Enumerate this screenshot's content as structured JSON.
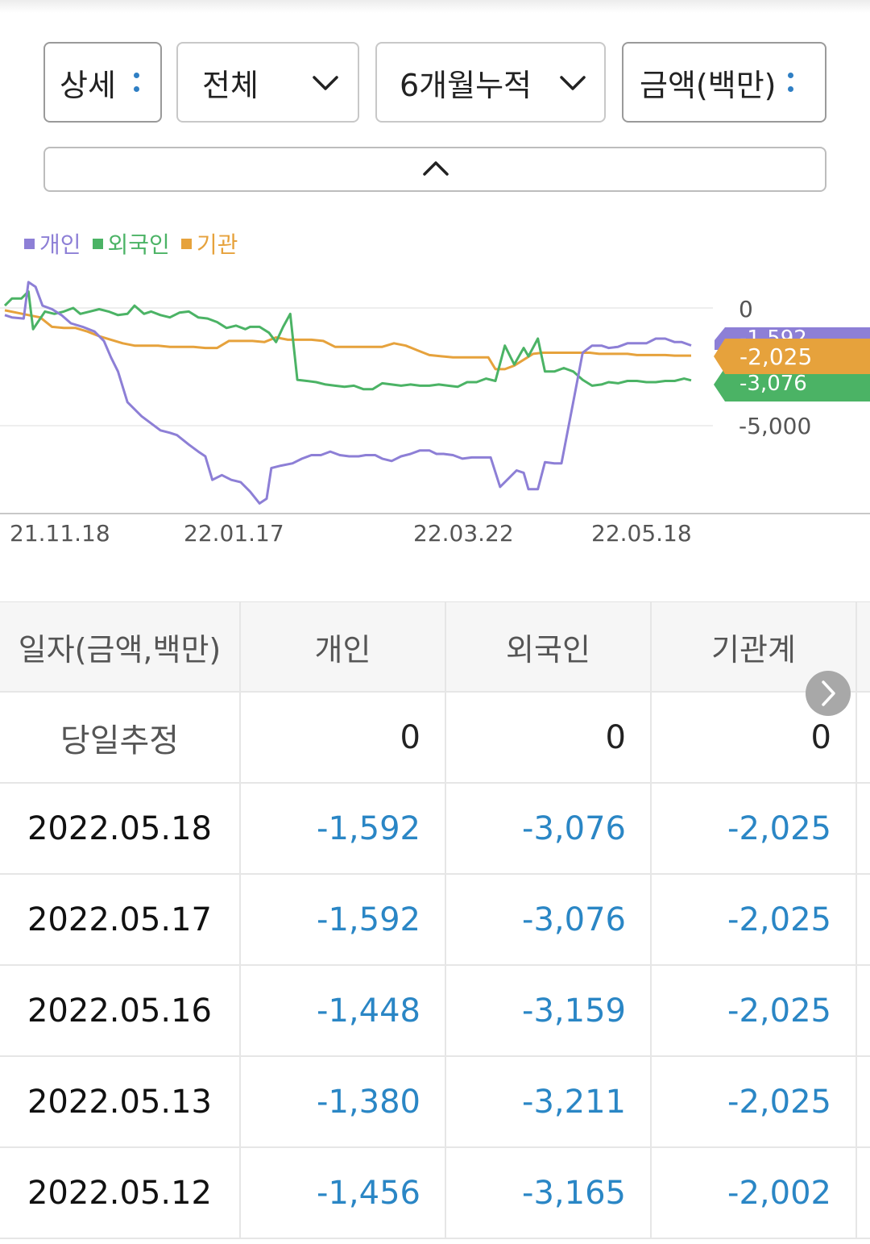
{
  "filters": {
    "view": "상세",
    "scope": "전체",
    "period": "6개월누적",
    "unit": "금액(백만)"
  },
  "chart_data": {
    "type": "line",
    "legend": [
      "개인",
      "외국인",
      "기관"
    ],
    "colors": {
      "개인": "#8d7fd6",
      "외국인": "#4bb365",
      "기관": "#e6a23c"
    },
    "x_ticks": [
      "21.11.18",
      "22.01.17",
      "22.03.22",
      "22.05.18"
    ],
    "y_ticks": [
      "0",
      "-5,000"
    ],
    "ylim": [
      -8500,
      1400
    ],
    "end_labels": {
      "개인": "-1,592",
      "기관": "-2,025",
      "외국인": "-3,076"
    },
    "series": [
      {
        "name": "개인",
        "points": [
          [
            0,
            -300
          ],
          [
            3,
            -400
          ],
          [
            8,
            -450
          ],
          [
            10,
            1100
          ],
          [
            13,
            900
          ],
          [
            16,
            100
          ],
          [
            20,
            -50
          ],
          [
            24,
            -300
          ],
          [
            28,
            -650
          ],
          [
            33,
            -800
          ],
          [
            38,
            -1000
          ],
          [
            42,
            -1400
          ],
          [
            45,
            -2100
          ],
          [
            48,
            -2700
          ],
          [
            52,
            -4000
          ],
          [
            55,
            -4300
          ],
          [
            58,
            -4600
          ],
          [
            62,
            -4900
          ],
          [
            66,
            -5200
          ],
          [
            70,
            -5300
          ],
          [
            73,
            -5400
          ],
          [
            78,
            -5800
          ],
          [
            82,
            -6100
          ],
          [
            85,
            -6300
          ],
          [
            88,
            -7300
          ],
          [
            92,
            -7100
          ],
          [
            96,
            -7300
          ],
          [
            100,
            -7400
          ],
          [
            104,
            -7800
          ],
          [
            108,
            -8300
          ],
          [
            111,
            -8100
          ],
          [
            113,
            -6800
          ],
          [
            117,
            -6700
          ],
          [
            122,
            -6600
          ],
          [
            126,
            -6400
          ],
          [
            130,
            -6250
          ],
          [
            134,
            -6250
          ],
          [
            138,
            -6100
          ],
          [
            142,
            -6250
          ],
          [
            146,
            -6300
          ],
          [
            150,
            -6300
          ],
          [
            153,
            -6250
          ],
          [
            157,
            -6250
          ],
          [
            160,
            -6400
          ],
          [
            164,
            -6500
          ],
          [
            168,
            -6300
          ],
          [
            172,
            -6200
          ],
          [
            176,
            -6050
          ],
          [
            180,
            -6050
          ],
          [
            183,
            -6200
          ],
          [
            186,
            -6200
          ],
          [
            190,
            -6250
          ],
          [
            194,
            -6400
          ],
          [
            198,
            -6350
          ],
          [
            202,
            -6350
          ],
          [
            206,
            -6350
          ],
          [
            210,
            -7600
          ],
          [
            214,
            -7200
          ],
          [
            217,
            -6900
          ],
          [
            220,
            -7000
          ],
          [
            222,
            -7700
          ],
          [
            226,
            -7700
          ],
          [
            229,
            -6550
          ],
          [
            233,
            -6600
          ],
          [
            236,
            -6600
          ],
          [
            241,
            -4000
          ],
          [
            245,
            -1900
          ],
          [
            249,
            -1600
          ],
          [
            253,
            -1600
          ],
          [
            256,
            -1700
          ],
          [
            260,
            -1650
          ],
          [
            264,
            -1500
          ],
          [
            268,
            -1500
          ],
          [
            272,
            -1500
          ],
          [
            276,
            -1300
          ],
          [
            280,
            -1300
          ],
          [
            284,
            -1450
          ],
          [
            287,
            -1450
          ],
          [
            291,
            -1592
          ]
        ]
      },
      {
        "name": "외국인",
        "points": [
          [
            0,
            100
          ],
          [
            3,
            400
          ],
          [
            7,
            400
          ],
          [
            10,
            700
          ],
          [
            12,
            -900
          ],
          [
            14,
            -600
          ],
          [
            17,
            -150
          ],
          [
            21,
            -250
          ],
          [
            25,
            -150
          ],
          [
            29,
            0
          ],
          [
            32,
            -250
          ],
          [
            36,
            -150
          ],
          [
            40,
            -50
          ],
          [
            44,
            -150
          ],
          [
            48,
            -300
          ],
          [
            52,
            -250
          ],
          [
            55,
            100
          ],
          [
            59,
            -250
          ],
          [
            62,
            -150
          ],
          [
            66,
            -300
          ],
          [
            70,
            -400
          ],
          [
            74,
            -200
          ],
          [
            78,
            -150
          ],
          [
            82,
            -400
          ],
          [
            86,
            -450
          ],
          [
            90,
            -600
          ],
          [
            94,
            -850
          ],
          [
            98,
            -750
          ],
          [
            102,
            -900
          ],
          [
            104,
            -800
          ],
          [
            108,
            -800
          ],
          [
            112,
            -1050
          ],
          [
            115,
            -1450
          ],
          [
            118,
            -800
          ],
          [
            121,
            -250
          ],
          [
            124,
            -3050
          ],
          [
            128,
            -3100
          ],
          [
            132,
            -3150
          ],
          [
            136,
            -3250
          ],
          [
            140,
            -3300
          ],
          [
            144,
            -3350
          ],
          [
            148,
            -3300
          ],
          [
            152,
            -3450
          ],
          [
            156,
            -3450
          ],
          [
            160,
            -3200
          ],
          [
            164,
            -3250
          ],
          [
            168,
            -3300
          ],
          [
            172,
            -3250
          ],
          [
            176,
            -3300
          ],
          [
            180,
            -3300
          ],
          [
            184,
            -3250
          ],
          [
            188,
            -3300
          ],
          [
            192,
            -3350
          ],
          [
            196,
            -3150
          ],
          [
            200,
            -3150
          ],
          [
            204,
            -3000
          ],
          [
            208,
            -3100
          ],
          [
            212,
            -1600
          ],
          [
            216,
            -2400
          ],
          [
            220,
            -1700
          ],
          [
            222,
            -2050
          ],
          [
            226,
            -1300
          ],
          [
            229,
            -2700
          ],
          [
            233,
            -2700
          ],
          [
            237,
            -2550
          ],
          [
            241,
            -2700
          ],
          [
            245,
            -3050
          ],
          [
            249,
            -3300
          ],
          [
            253,
            -3250
          ],
          [
            256,
            -3150
          ],
          [
            260,
            -3200
          ],
          [
            264,
            -3100
          ],
          [
            268,
            -3100
          ],
          [
            272,
            -3150
          ],
          [
            276,
            -3150
          ],
          [
            280,
            -3100
          ],
          [
            284,
            -3100
          ],
          [
            288,
            -3000
          ],
          [
            291,
            -3076
          ]
        ]
      },
      {
        "name": "기관",
        "points": [
          [
            0,
            -100
          ],
          [
            5,
            -200
          ],
          [
            10,
            -300
          ],
          [
            15,
            -400
          ],
          [
            20,
            -800
          ],
          [
            25,
            -850
          ],
          [
            30,
            -850
          ],
          [
            35,
            -1000
          ],
          [
            40,
            -1200
          ],
          [
            45,
            -1350
          ],
          [
            50,
            -1500
          ],
          [
            55,
            -1600
          ],
          [
            60,
            -1600
          ],
          [
            65,
            -1600
          ],
          [
            70,
            -1650
          ],
          [
            75,
            -1650
          ],
          [
            80,
            -1650
          ],
          [
            85,
            -1700
          ],
          [
            90,
            -1700
          ],
          [
            95,
            -1400
          ],
          [
            100,
            -1400
          ],
          [
            105,
            -1400
          ],
          [
            110,
            -1450
          ],
          [
            115,
            -1250
          ],
          [
            120,
            -1350
          ],
          [
            125,
            -1350
          ],
          [
            130,
            -1350
          ],
          [
            135,
            -1400
          ],
          [
            140,
            -1650
          ],
          [
            145,
            -1650
          ],
          [
            150,
            -1650
          ],
          [
            155,
            -1650
          ],
          [
            160,
            -1650
          ],
          [
            165,
            -1500
          ],
          [
            170,
            -1600
          ],
          [
            175,
            -1800
          ],
          [
            180,
            -2000
          ],
          [
            185,
            -2050
          ],
          [
            190,
            -2100
          ],
          [
            195,
            -2100
          ],
          [
            200,
            -2100
          ],
          [
            205,
            -2100
          ],
          [
            208,
            -2600
          ],
          [
            212,
            -2600
          ],
          [
            216,
            -2450
          ],
          [
            220,
            -2200
          ],
          [
            224,
            -1950
          ],
          [
            228,
            -1900
          ],
          [
            232,
            -1900
          ],
          [
            236,
            -1900
          ],
          [
            240,
            -1900
          ],
          [
            244,
            -1900
          ],
          [
            248,
            -1900
          ],
          [
            252,
            -1950
          ],
          [
            256,
            -1950
          ],
          [
            260,
            -1950
          ],
          [
            264,
            -1950
          ],
          [
            268,
            -2000
          ],
          [
            272,
            -2000
          ],
          [
            276,
            -2000
          ],
          [
            280,
            -2000
          ],
          [
            284,
            -2025
          ],
          [
            291,
            -2025
          ]
        ]
      }
    ]
  },
  "table": {
    "headers": [
      "일자(금액,백만)",
      "개인",
      "외국인",
      "기관계"
    ],
    "rows": [
      [
        "당일추정",
        "0",
        "0",
        "0"
      ],
      [
        "2022.05.18",
        "-1,592",
        "-3,076",
        "-2,025"
      ],
      [
        "2022.05.17",
        "-1,592",
        "-3,076",
        "-2,025"
      ],
      [
        "2022.05.16",
        "-1,448",
        "-3,159",
        "-2,025"
      ],
      [
        "2022.05.13",
        "-1,380",
        "-3,211",
        "-2,025"
      ],
      [
        "2022.05.12",
        "-1,456",
        "-3,165",
        "-2,002"
      ]
    ]
  }
}
